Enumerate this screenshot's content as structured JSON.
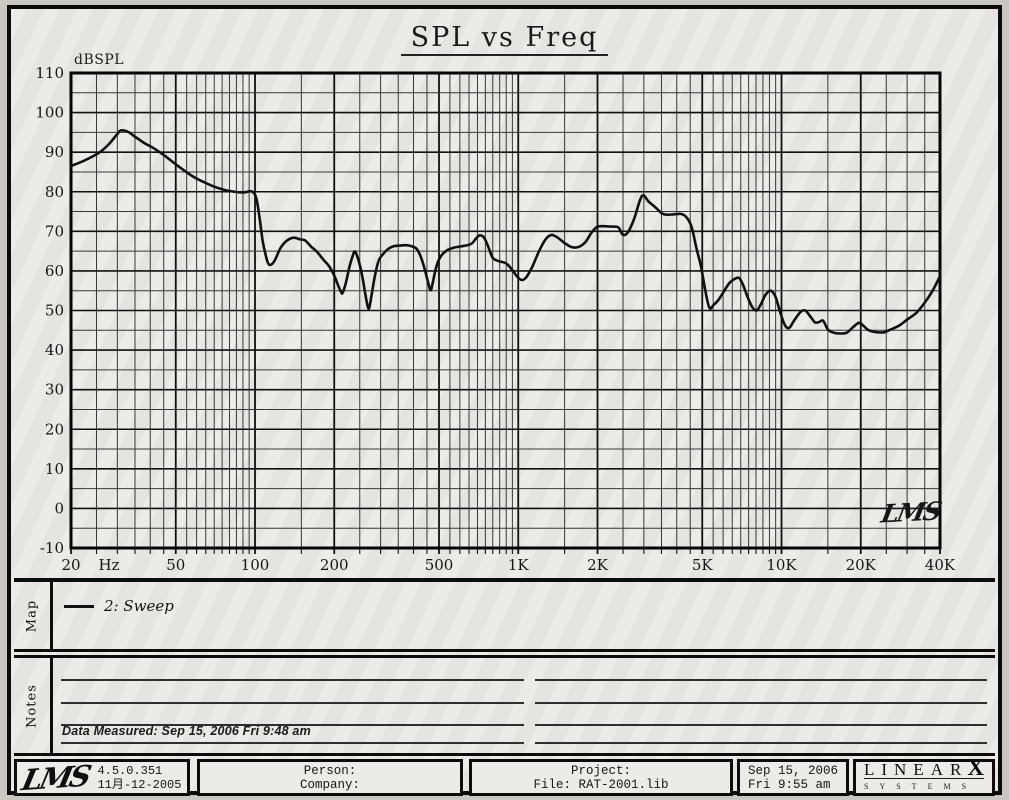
{
  "chart": {
    "title": "SPL vs Freq",
    "y_unit": "dBSPL",
    "x_unit": "Hz",
    "watermark": "LMS"
  },
  "map": {
    "label": "Map",
    "legend": "2: Sweep"
  },
  "notes": {
    "label": "Notes",
    "data_measured": "Data Measured: Sep 15, 2006  Fri  9:48 am"
  },
  "footer": {
    "logo": "LMS",
    "version": "4.5.0.351",
    "version_date": "11月-12-2005",
    "person_label": "Person:",
    "company_label": "Company:",
    "project_label": "Project:",
    "file_line": "File: RAT-2001.lib",
    "date_line1": "Sep 15, 2006",
    "date_line2": "Fri  9:55 am",
    "brand_word": "LINEAR",
    "brand_x": "X",
    "brand_sub": "SYSTEMS"
  },
  "chart_data": {
    "type": "line",
    "title": "SPL vs Freq",
    "xlabel": "Hz",
    "ylabel": "dBSPL",
    "x_scale": "log",
    "xlim": [
      20,
      40000
    ],
    "ylim": [
      -10,
      110
    ],
    "y_tick_step": 10,
    "y_minor_step": 5,
    "grid": "on",
    "legend_position": "map-band",
    "x_ticks": [
      {
        "f": 20,
        "label": "20"
      },
      {
        "f": 50,
        "label": "50"
      },
      {
        "f": 100,
        "label": "100"
      },
      {
        "f": 200,
        "label": "200"
      },
      {
        "f": 500,
        "label": "500"
      },
      {
        "f": 1000,
        "label": "1K"
      },
      {
        "f": 2000,
        "label": "2K"
      },
      {
        "f": 5000,
        "label": "5K"
      },
      {
        "f": 10000,
        "label": "10K"
      },
      {
        "f": 20000,
        "label": "20K"
      },
      {
        "f": 40000,
        "label": "40K"
      }
    ],
    "minor_mantissas": [
      1,
      1.5,
      2,
      2.5,
      3,
      3.5,
      4,
      4.5,
      5,
      5.5,
      6,
      6.5,
      7,
      7.5,
      8,
      8.5,
      9,
      9.5
    ],
    "series": [
      {
        "name": "2: Sweep",
        "color": "#101010",
        "points": [
          [
            20,
            86.5
          ],
          [
            22,
            87.6
          ],
          [
            24,
            88.8
          ],
          [
            26,
            90.2
          ],
          [
            28,
            92.2
          ],
          [
            30,
            94.6
          ],
          [
            31,
            95.5
          ],
          [
            33,
            95.1
          ],
          [
            35,
            93.9
          ],
          [
            38,
            92.3
          ],
          [
            41,
            91.1
          ],
          [
            45,
            89.3
          ],
          [
            49,
            87.4
          ],
          [
            54,
            85.3
          ],
          [
            59,
            83.6
          ],
          [
            65,
            82.2
          ],
          [
            72,
            81.0
          ],
          [
            80,
            80.2
          ],
          [
            90,
            79.8
          ],
          [
            97,
            80.1
          ],
          [
            101,
            78.5
          ],
          [
            104,
            73.5
          ],
          [
            107,
            67.5
          ],
          [
            110,
            63.8
          ],
          [
            113,
            61.6
          ],
          [
            118,
            62.3
          ],
          [
            125,
            65.8
          ],
          [
            132,
            67.6
          ],
          [
            140,
            68.4
          ],
          [
            148,
            68.0
          ],
          [
            155,
            67.7
          ],
          [
            163,
            66.2
          ],
          [
            172,
            64.8
          ],
          [
            182,
            62.8
          ],
          [
            192,
            61.0
          ],
          [
            200,
            58.8
          ],
          [
            207,
            56.3
          ],
          [
            212,
            54.8
          ],
          [
            215,
            54.4
          ],
          [
            221,
            56.8
          ],
          [
            228,
            60.8
          ],
          [
            235,
            63.8
          ],
          [
            240,
            64.9
          ],
          [
            247,
            62.8
          ],
          [
            254,
            59.5
          ],
          [
            260,
            55.8
          ],
          [
            266,
            52.0
          ],
          [
            271,
            50.5
          ],
          [
            277,
            53.8
          ],
          [
            286,
            59.0
          ],
          [
            295,
            62.6
          ],
          [
            307,
            64.3
          ],
          [
            320,
            65.5
          ],
          [
            335,
            66.2
          ],
          [
            355,
            66.4
          ],
          [
            375,
            66.5
          ],
          [
            395,
            66.2
          ],
          [
            412,
            65.5
          ],
          [
            428,
            63.3
          ],
          [
            443,
            60.0
          ],
          [
            455,
            57.0
          ],
          [
            464,
            55.1
          ],
          [
            472,
            56.6
          ],
          [
            483,
            59.8
          ],
          [
            497,
            62.5
          ],
          [
            515,
            64.2
          ],
          [
            540,
            65.3
          ],
          [
            570,
            65.9
          ],
          [
            605,
            66.2
          ],
          [
            640,
            66.5
          ],
          [
            668,
            67.0
          ],
          [
            695,
            68.4
          ],
          [
            715,
            69.0
          ],
          [
            742,
            68.4
          ],
          [
            770,
            66.0
          ],
          [
            798,
            63.4
          ],
          [
            825,
            62.7
          ],
          [
            860,
            62.3
          ],
          [
            900,
            61.9
          ],
          [
            945,
            60.4
          ],
          [
            990,
            58.6
          ],
          [
            1030,
            57.7
          ],
          [
            1070,
            58.3
          ],
          [
            1130,
            61.0
          ],
          [
            1200,
            65.0
          ],
          [
            1270,
            68.0
          ],
          [
            1340,
            69.1
          ],
          [
            1420,
            68.3
          ],
          [
            1510,
            66.9
          ],
          [
            1600,
            66.0
          ],
          [
            1700,
            66.1
          ],
          [
            1800,
            67.3
          ],
          [
            1900,
            69.7
          ],
          [
            1990,
            71.1
          ],
          [
            2100,
            71.3
          ],
          [
            2250,
            71.2
          ],
          [
            2400,
            71.0
          ],
          [
            2490,
            69.2
          ],
          [
            2600,
            69.6
          ],
          [
            2750,
            73.0
          ],
          [
            2900,
            77.9
          ],
          [
            2990,
            79.1
          ],
          [
            3120,
            77.6
          ],
          [
            3300,
            76.2
          ],
          [
            3520,
            74.5
          ],
          [
            3700,
            74.2
          ],
          [
            3900,
            74.3
          ],
          [
            4150,
            74.4
          ],
          [
            4350,
            73.6
          ],
          [
            4550,
            71.2
          ],
          [
            4750,
            65.8
          ],
          [
            4950,
            61.0
          ],
          [
            5120,
            55.5
          ],
          [
            5320,
            50.7
          ],
          [
            5520,
            51.4
          ],
          [
            5750,
            52.6
          ],
          [
            6050,
            54.9
          ],
          [
            6350,
            57.0
          ],
          [
            6650,
            58.0
          ],
          [
            6900,
            58.2
          ],
          [
            7150,
            56.4
          ],
          [
            7450,
            53.2
          ],
          [
            7750,
            50.8
          ],
          [
            8050,
            50.0
          ],
          [
            8350,
            51.6
          ],
          [
            8700,
            54.0
          ],
          [
            9100,
            55.0
          ],
          [
            9500,
            53.4
          ],
          [
            9900,
            49.4
          ],
          [
            10300,
            46.3
          ],
          [
            10700,
            45.6
          ],
          [
            11200,
            47.6
          ],
          [
            11800,
            49.6
          ],
          [
            12300,
            50.0
          ],
          [
            12900,
            48.4
          ],
          [
            13400,
            47.0
          ],
          [
            13900,
            47.1
          ],
          [
            14400,
            47.4
          ],
          [
            15000,
            45.2
          ],
          [
            15800,
            44.4
          ],
          [
            16800,
            44.2
          ],
          [
            17700,
            44.4
          ],
          [
            18700,
            45.8
          ],
          [
            19700,
            46.9
          ],
          [
            20500,
            46.1
          ],
          [
            21300,
            45.1
          ],
          [
            22200,
            44.7
          ],
          [
            23200,
            44.5
          ],
          [
            24500,
            44.5
          ],
          [
            26000,
            45.2
          ],
          [
            28000,
            46.2
          ],
          [
            30000,
            47.7
          ],
          [
            32500,
            49.4
          ],
          [
            35000,
            52.0
          ],
          [
            37500,
            55.0
          ],
          [
            40000,
            58.7
          ]
        ]
      }
    ]
  }
}
